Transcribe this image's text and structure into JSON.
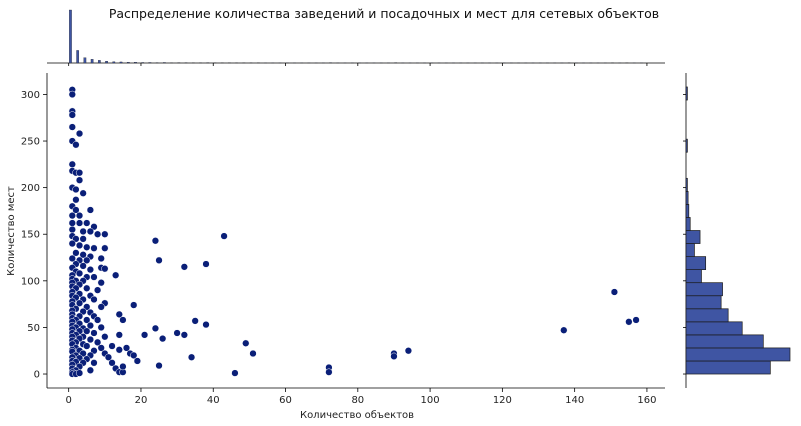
{
  "chart_data": {
    "type": "scatter",
    "title": "Распределение количества заведений и посадочных и мест для сетевых объектов",
    "xlabel": "Количество объектов",
    "ylabel": "Количество мест",
    "xlim": [
      -6,
      165
    ],
    "ylim": [
      -15,
      323
    ],
    "xticks": [
      0,
      20,
      40,
      60,
      80,
      100,
      120,
      140,
      160
    ],
    "yticks": [
      0,
      50,
      100,
      150,
      200,
      250,
      300
    ],
    "grid": false,
    "colors": {
      "point": "#0a1f78",
      "point_edge": "#ffffff",
      "bar": "#3f55a3",
      "bar_edge": "#1a1a1a",
      "axis": "#000000"
    },
    "points": [
      [
        1,
        305
      ],
      [
        1,
        300
      ],
      [
        1,
        282
      ],
      [
        1,
        278
      ],
      [
        1,
        265
      ],
      [
        3,
        258
      ],
      [
        1,
        250
      ],
      [
        2,
        246
      ],
      [
        1,
        225
      ],
      [
        1,
        218
      ],
      [
        2,
        216
      ],
      [
        3,
        216
      ],
      [
        3,
        208
      ],
      [
        1,
        200
      ],
      [
        2,
        198
      ],
      [
        4,
        194
      ],
      [
        2,
        187
      ],
      [
        1,
        180
      ],
      [
        2,
        176
      ],
      [
        6,
        176
      ],
      [
        1,
        170
      ],
      [
        3,
        170
      ],
      [
        1,
        162
      ],
      [
        3,
        162
      ],
      [
        5,
        162
      ],
      [
        7,
        158
      ],
      [
        1,
        155
      ],
      [
        4,
        153
      ],
      [
        6,
        153
      ],
      [
        8,
        150
      ],
      [
        10,
        150
      ],
      [
        1,
        148
      ],
      [
        2,
        145
      ],
      [
        4,
        145
      ],
      [
        1,
        140
      ],
      [
        3,
        138
      ],
      [
        5,
        136
      ],
      [
        7,
        135
      ],
      [
        10,
        135
      ],
      [
        2,
        130
      ],
      [
        4,
        128
      ],
      [
        6,
        126
      ],
      [
        1,
        124
      ],
      [
        3,
        122
      ],
      [
        5,
        122
      ],
      [
        9,
        124
      ],
      [
        2,
        118
      ],
      [
        4,
        116
      ],
      [
        1,
        114
      ],
      [
        6,
        112
      ],
      [
        9,
        114
      ],
      [
        10,
        113
      ],
      [
        2,
        110
      ],
      [
        3,
        108
      ],
      [
        1,
        106
      ],
      [
        5,
        104
      ],
      [
        7,
        104
      ],
      [
        13,
        106
      ],
      [
        1,
        102
      ],
      [
        2,
        100
      ],
      [
        4,
        100
      ],
      [
        1,
        98
      ],
      [
        3,
        96
      ],
      [
        9,
        98
      ],
      [
        1,
        94
      ],
      [
        2,
        92
      ],
      [
        5,
        92
      ],
      [
        8,
        90
      ],
      [
        1,
        88
      ],
      [
        3,
        86
      ],
      [
        6,
        84
      ],
      [
        1,
        84
      ],
      [
        2,
        82
      ],
      [
        4,
        80
      ],
      [
        7,
        80
      ],
      [
        1,
        78
      ],
      [
        3,
        76
      ],
      [
        10,
        76
      ],
      [
        1,
        74
      ],
      [
        5,
        72
      ],
      [
        9,
        72
      ],
      [
        2,
        70
      ],
      [
        1,
        68
      ],
      [
        4,
        67
      ],
      [
        6,
        66
      ],
      [
        1,
        64
      ],
      [
        3,
        62
      ],
      [
        7,
        62
      ],
      [
        1,
        60
      ],
      [
        2,
        58
      ],
      [
        5,
        58
      ],
      [
        8,
        58
      ],
      [
        1,
        56
      ],
      [
        3,
        54
      ],
      [
        1,
        52
      ],
      [
        6,
        52
      ],
      [
        2,
        50
      ],
      [
        4,
        49
      ],
      [
        9,
        50
      ],
      [
        1,
        48
      ],
      [
        3,
        46
      ],
      [
        5,
        46
      ],
      [
        1,
        44
      ],
      [
        7,
        44
      ],
      [
        2,
        42
      ],
      [
        4,
        40
      ],
      [
        1,
        40
      ],
      [
        10,
        40
      ],
      [
        3,
        38
      ],
      [
        6,
        37
      ],
      [
        1,
        36
      ],
      [
        2,
        34
      ],
      [
        8,
        34
      ],
      [
        1,
        32
      ],
      [
        4,
        32
      ],
      [
        5,
        30
      ],
      [
        2,
        28
      ],
      [
        9,
        28
      ],
      [
        1,
        26
      ],
      [
        3,
        25
      ],
      [
        7,
        25
      ],
      [
        1,
        24
      ],
      [
        4,
        22
      ],
      [
        10,
        22
      ],
      [
        2,
        20
      ],
      [
        6,
        20
      ],
      [
        1,
        18
      ],
      [
        3,
        17
      ],
      [
        5,
        16
      ],
      [
        1,
        14
      ],
      [
        2,
        13
      ],
      [
        4,
        12
      ],
      [
        7,
        12
      ],
      [
        1,
        10
      ],
      [
        3,
        8
      ],
      [
        1,
        6
      ],
      [
        2,
        4
      ],
      [
        6,
        4
      ],
      [
        1,
        2
      ],
      [
        1,
        0
      ],
      [
        2,
        0
      ],
      [
        3,
        1
      ],
      [
        11,
        18
      ],
      [
        12,
        12
      ],
      [
        12,
        30
      ],
      [
        13,
        6
      ],
      [
        14,
        2
      ],
      [
        14,
        26
      ],
      [
        15,
        2
      ],
      [
        15,
        8
      ],
      [
        16,
        28
      ],
      [
        17,
        22
      ],
      [
        18,
        20
      ],
      [
        18,
        74
      ],
      [
        19,
        14
      ],
      [
        14,
        42
      ],
      [
        14,
        64
      ],
      [
        15,
        58
      ],
      [
        21,
        42
      ],
      [
        24,
        49
      ],
      [
        24,
        143
      ],
      [
        25,
        122
      ],
      [
        25,
        9
      ],
      [
        26,
        38
      ],
      [
        30,
        44
      ],
      [
        32,
        42
      ],
      [
        32,
        115
      ],
      [
        34,
        18
      ],
      [
        35,
        57
      ],
      [
        38,
        118
      ],
      [
        38,
        53
      ],
      [
        43,
        148
      ],
      [
        46,
        1
      ],
      [
        49,
        33
      ],
      [
        51,
        22
      ],
      [
        72,
        7
      ],
      [
        72,
        2
      ],
      [
        90,
        22
      ],
      [
        90,
        19
      ],
      [
        94,
        25
      ],
      [
        137,
        47
      ],
      [
        151,
        88
      ],
      [
        155,
        56
      ],
      [
        157,
        58
      ]
    ],
    "top_marginal_histogram": {
      "bins": [
        0,
        2,
        4,
        6,
        8,
        10,
        12,
        14,
        16,
        18,
        20,
        22,
        24,
        26,
        28,
        30,
        32,
        34,
        36,
        38,
        40,
        42,
        44,
        46,
        48,
        50,
        52,
        54,
        56,
        58,
        60,
        62,
        64,
        66,
        68,
        70,
        72,
        74,
        76,
        78,
        80,
        82,
        84,
        86,
        88,
        90,
        92,
        94,
        96,
        98,
        100,
        102,
        104,
        106,
        108,
        110,
        112,
        114,
        116,
        118,
        120,
        122,
        124,
        126,
        128,
        130,
        132,
        134,
        136,
        138,
        140,
        142,
        144,
        146,
        148,
        150,
        152,
        154,
        156,
        158,
        160
      ],
      "counts": [
        400,
        95,
        40,
        28,
        20,
        14,
        10,
        8,
        6,
        6,
        4,
        4,
        3,
        4,
        2,
        3,
        3,
        2,
        2,
        3,
        2,
        2,
        2,
        2,
        2,
        2,
        2,
        1,
        1,
        1,
        1,
        1,
        1,
        1,
        1,
        1,
        3,
        1,
        1,
        1,
        1,
        1,
        1,
        1,
        1,
        3,
        1,
        1,
        1,
        1,
        1,
        1,
        1,
        1,
        1,
        1,
        1,
        1,
        1,
        1,
        1,
        1,
        1,
        1,
        1,
        1,
        1,
        1,
        1,
        2,
        1,
        1,
        1,
        1,
        1,
        2,
        1,
        2,
        1,
        1
      ]
    },
    "right_marginal_histogram": {
      "bins": [
        0,
        16,
        32,
        48,
        64,
        80,
        96,
        112,
        128,
        144,
        160,
        176,
        192,
        208,
        224,
        240,
        256,
        272,
        288,
        304
      ],
      "counts": [
        100,
        115,
        87,
        62,
        46,
        39,
        40,
        15,
        22,
        8,
        5,
        3,
        2,
        0,
        0,
        0,
        1,
        0,
        0,
        1
      ],
      "counts_full": [
        [
          0,
          14,
          120
        ],
        [
          14,
          28,
          148
        ],
        [
          28,
          42,
          110
        ],
        [
          42,
          56,
          80
        ],
        [
          56,
          70,
          60
        ],
        [
          70,
          84,
          50
        ],
        [
          84,
          98,
          52
        ],
        [
          98,
          112,
          22
        ],
        [
          112,
          126,
          28
        ],
        [
          126,
          140,
          12
        ],
        [
          140,
          154,
          20
        ],
        [
          154,
          168,
          6
        ],
        [
          168,
          182,
          4
        ],
        [
          182,
          196,
          3
        ],
        [
          196,
          210,
          2
        ],
        [
          210,
          224,
          0
        ],
        [
          224,
          238,
          0
        ],
        [
          238,
          252,
          2
        ],
        [
          252,
          266,
          0
        ],
        [
          266,
          280,
          0
        ],
        [
          280,
          294,
          0
        ],
        [
          294,
          308,
          2
        ]
      ]
    }
  }
}
